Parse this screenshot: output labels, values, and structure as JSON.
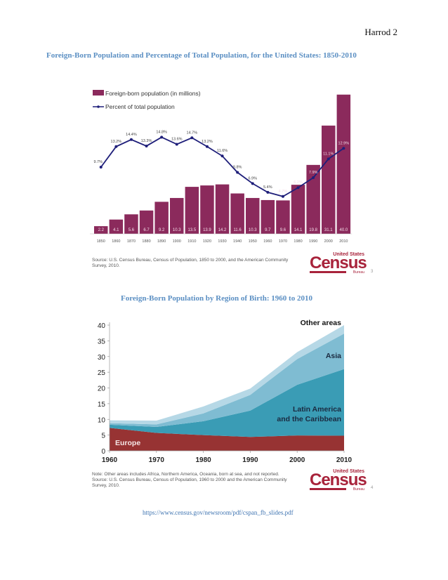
{
  "page": {
    "header_name": "Harrod 2",
    "caption1": "Foreign-Born Population and Percentage of Total Population, for the United States: 1850-2010",
    "caption2": "Foreign-Born Population by Region of Birth: 1960 to 2010",
    "url": "https://www.census.gov/newsroom/pdf/cspan_fb_slides.pdf"
  },
  "slide1": {
    "source": "Source: U.S. Census Bureau, Census of Population, 1850 to 2000, and the American Community Survey, 2010.",
    "slide_number": "3",
    "logo_top": "United States",
    "logo_main": "Census",
    "logo_bottom": "Bureau"
  },
  "slide2": {
    "note": "Note: Other areas includes Africa, Northern America, Oceania, born at sea, and not reported.",
    "source": "Source: U.S. Census Bureau, Census of Population, 1960 to 2000 and the American Community Survey, 2010.",
    "slide_number": "4",
    "logo_top": "United States",
    "logo_main": "Census",
    "logo_bottom": "Bureau"
  },
  "chart_data": [
    {
      "type": "bar",
      "title": "Foreign-Born Population and Percentage of Total Population, for the United States: 1850-2010",
      "legend": [
        "Foreign-born population (in millions)",
        "Percent of total population"
      ],
      "legend_position": "top-left",
      "categories": [
        "1850",
        "1860",
        "1870",
        "1880",
        "1890",
        "1900",
        "1910",
        "1920",
        "1930",
        "1940",
        "1950",
        "1960",
        "1970",
        "1980",
        "1990",
        "2000",
        "2010"
      ],
      "series": [
        {
          "name": "Foreign-born population (in millions)",
          "type": "bar",
          "color": "#8b2a5c",
          "values": [
            2.2,
            4.1,
            5.6,
            6.7,
            9.2,
            10.3,
            13.5,
            13.9,
            14.2,
            11.6,
            10.3,
            9.7,
            9.6,
            14.1,
            19.8,
            31.1,
            40.0
          ],
          "labels": [
            "2.2",
            "4.1",
            "5.6",
            "6.7",
            "9.2",
            "10.3",
            "13.5",
            "13.9",
            "14.2",
            "11.6",
            "10.3",
            "9.7",
            "9.6",
            "14.1",
            "19.8",
            "31.1",
            "40.0"
          ]
        },
        {
          "name": "Percent of total population",
          "type": "line",
          "color": "#1f1f7a",
          "values": [
            9.7,
            13.2,
            14.4,
            13.3,
            14.8,
            13.6,
            14.7,
            13.2,
            11.6,
            8.8,
            6.9,
            5.4,
            4.7,
            6.2,
            7.9,
            11.1,
            12.9
          ],
          "labels": [
            "9.7%",
            "13.2%",
            "14.4%",
            "13.3%",
            "14.8%",
            "13.6%",
            "14.7%",
            "13.2%",
            "11.6%",
            "8.8%",
            "6.9%",
            "5.4%",
            "4.7%",
            "6.2%",
            "7.9%",
            "11.1%",
            "12.9%"
          ]
        }
      ],
      "xlabel": "",
      "ylabel": "",
      "grid": false
    },
    {
      "type": "area",
      "title": "Foreign-Born Population by Region of Birth: 1960 to 2010",
      "x": [
        1960,
        1970,
        1980,
        1990,
        2000,
        2010
      ],
      "xticks": [
        "1960",
        "1970",
        "1980",
        "1990",
        "2000",
        "2010"
      ],
      "yticks": [
        "0",
        "5",
        "10",
        "15",
        "20",
        "25",
        "30",
        "35",
        "40"
      ],
      "ylim": [
        0,
        40
      ],
      "stacked": true,
      "series": [
        {
          "name": "Europe",
          "color": "#973333",
          "values": [
            7.3,
            5.7,
            5.0,
            4.4,
            4.9,
            4.8
          ]
        },
        {
          "name": "Latin America and the Caribbean",
          "color": "#3a9cb5",
          "values": [
            1.0,
            1.9,
            4.4,
            8.4,
            16.1,
            21.2
          ]
        },
        {
          "name": "Asia",
          "color": "#7fbcd2",
          "values": [
            0.5,
            0.8,
            2.5,
            5.0,
            8.2,
            11.3
          ]
        },
        {
          "name": "Other areas",
          "color": "#b6d8e6",
          "values": [
            0.9,
            1.2,
            2.2,
            2.0,
            2.2,
            2.7
          ]
        }
      ],
      "labels": [
        "Europe",
        "Latin America",
        "and the Caribbean",
        "Asia",
        "Other areas"
      ],
      "grid": false
    }
  ]
}
